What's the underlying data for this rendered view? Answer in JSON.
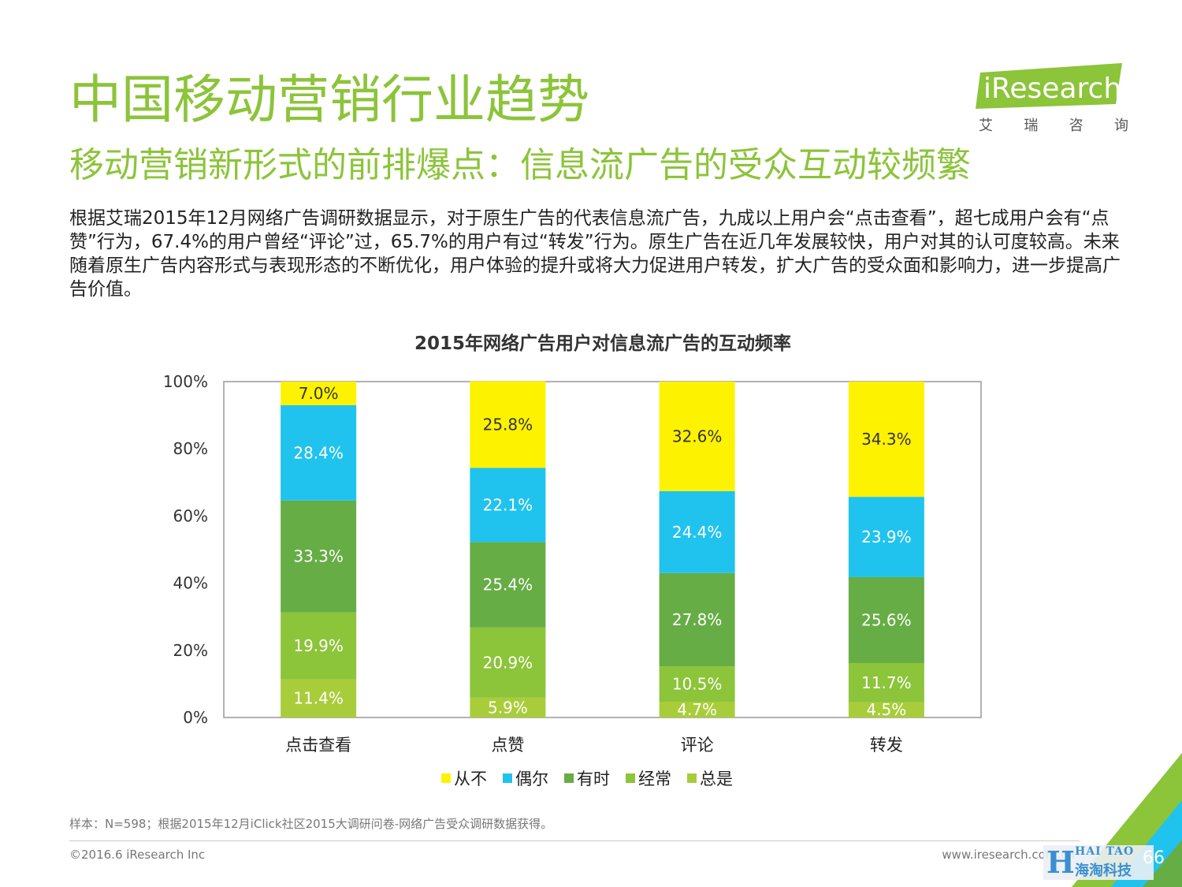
{
  "header": {
    "title": "中国移动营销行业趋势",
    "subtitle": "移动营销新形式的前排爆点：信息流广告的受众互动较频繁"
  },
  "logo": {
    "name": "iResearch",
    "tagline": [
      "艾",
      "瑞",
      "咨",
      "询"
    ],
    "color": "#8cc43a"
  },
  "summary": "根据艾瑞2015年12月网络广告调研数据显示，对于原生广告的代表信息流广告，九成以上用户会“点击查看”，超七成用户会有“点赞”行为，67.4%的用户曾经“评论”过，65.7%的用户有过“转发”行为。原生广告在近几年发展较快，用户对其的认可度较高。未来随着原生广告内容形式与表现形态的不断优化，用户体验的提升或将大力促进用户转发，扩大广告的受众面和影响力，进一步提高广告价值。",
  "chart_data": {
    "type": "bar",
    "stacked": true,
    "title": "2015年网络广告用户对信息流广告的互动频率",
    "categories": [
      "点击查看",
      "点赞",
      "评论",
      "转发"
    ],
    "ylim": [
      0,
      100
    ],
    "yticks": [
      "0%",
      "20%",
      "40%",
      "60%",
      "80%",
      "100%"
    ],
    "legend_position": "bottom",
    "grid": false,
    "series": [
      {
        "name": "总是",
        "color": "#a9cd3a",
        "values": [
          11.4,
          5.9,
          4.7,
          4.5
        ]
      },
      {
        "name": "经常",
        "color": "#8cc43a",
        "values": [
          19.9,
          20.9,
          10.5,
          11.7
        ]
      },
      {
        "name": "有时",
        "color": "#66ad45",
        "values": [
          33.3,
          25.4,
          27.8,
          25.6
        ]
      },
      {
        "name": "偶尔",
        "color": "#20c3ee",
        "values": [
          28.4,
          22.1,
          24.4,
          23.9
        ]
      },
      {
        "name": "从不",
        "color": "#fdf200",
        "values": [
          7.0,
          25.8,
          32.6,
          34.3
        ]
      }
    ],
    "legend_order": [
      "从不",
      "偶尔",
      "有时",
      "经常",
      "总是"
    ]
  },
  "footer": {
    "note": "样本：N=598；根据2015年12月iClick社区2015大调研问卷-网络广告受众调研数据获得。",
    "copyright": "©2016.6 iResearch Inc",
    "site": "www.iresearch.com.cn",
    "page": "66"
  },
  "watermark": {
    "mark": "H",
    "en": "HAI TAO",
    "cn": "海淘科技"
  }
}
